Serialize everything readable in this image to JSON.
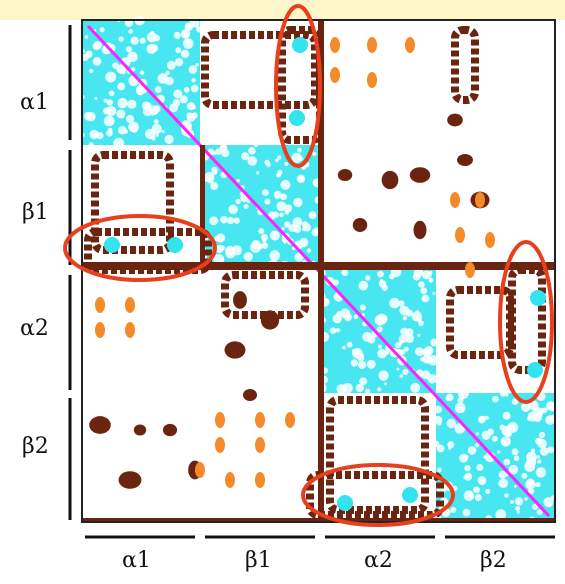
{
  "figure": {
    "row_labels": [
      "α1",
      "β1",
      "α2",
      "β2"
    ],
    "col_labels": [
      "α1",
      "β1",
      "α2",
      "β2"
    ],
    "colors": {
      "banner": "#fdf6c9",
      "diagonal_block": "#33e3ee",
      "diagonal_line": "#ff22ff",
      "contact_dark": "#6b2410",
      "contact_light": "#f58a2a",
      "highlight_ellipse": "#e8401c",
      "frame": "#222222"
    },
    "highlight_count": 4
  }
}
